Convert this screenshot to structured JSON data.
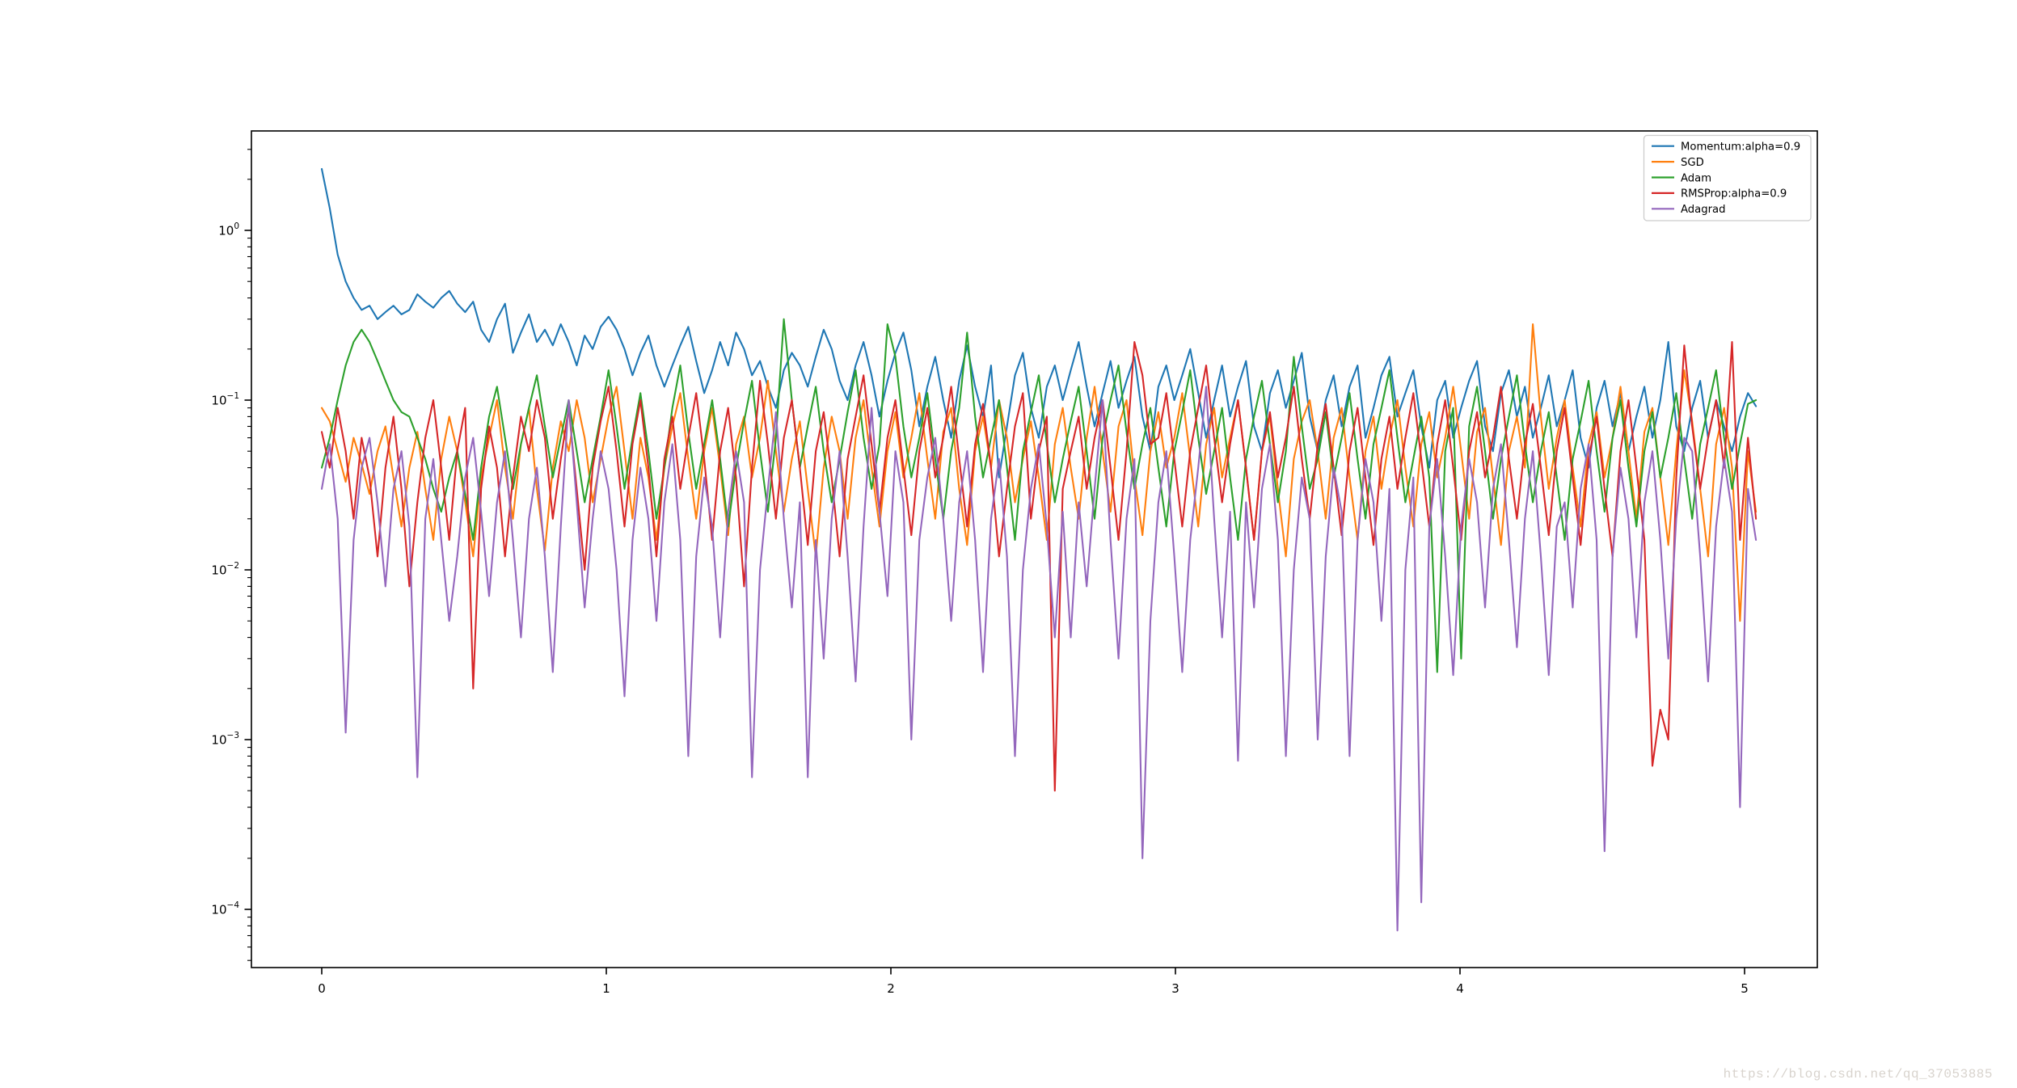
{
  "watermark": {
    "text": "https://blog.csdn.net/qq_37053885",
    "color": "#d8d3cd"
  },
  "chart_data": {
    "type": "line",
    "title": "",
    "xlabel": "",
    "ylabel": "",
    "grid": false,
    "background": "#ffffff",
    "axes_color": "#000000",
    "x_axis": {
      "ticks": [
        0,
        1,
        2,
        3,
        4,
        5
      ],
      "lim": [
        -0.25,
        5.29
      ]
    },
    "y_axis": {
      "scale": "log",
      "lim": [
        4.2e-05,
        3.9
      ],
      "ticks": [
        {
          "base": "10",
          "exp": "0",
          "value": 1
        },
        {
          "base": "10",
          "exp": "−1",
          "value": 0.1
        },
        {
          "base": "10",
          "exp": "−2",
          "value": 0.01
        },
        {
          "base": "10",
          "exp": "−3",
          "value": 0.001
        },
        {
          "base": "10",
          "exp": "−4",
          "value": 0.0001
        }
      ]
    },
    "legend": {
      "position": "upper right",
      "border_color": "#cccccc",
      "entries": [
        "Momentum:alpha=0.9",
        "SGD",
        "Adam",
        "RMSProp:alpha=0.9",
        "Adagrad"
      ]
    },
    "x0": 0,
    "dx": 0.028,
    "series": [
      {
        "name": "Momentum:alpha=0.9",
        "color": "#1f77b4",
        "values": [
          2.3,
          1.35,
          0.72,
          0.5,
          0.4,
          0.34,
          0.36,
          0.3,
          0.33,
          0.36,
          0.32,
          0.34,
          0.42,
          0.38,
          0.35,
          0.4,
          0.44,
          0.37,
          0.33,
          0.38,
          0.26,
          0.22,
          0.3,
          0.37,
          0.19,
          0.25,
          0.32,
          0.22,
          0.26,
          0.21,
          0.28,
          0.22,
          0.16,
          0.24,
          0.2,
          0.27,
          0.31,
          0.26,
          0.2,
          0.14,
          0.19,
          0.24,
          0.16,
          0.12,
          0.16,
          0.21,
          0.27,
          0.17,
          0.11,
          0.15,
          0.22,
          0.16,
          0.25,
          0.2,
          0.14,
          0.17,
          0.12,
          0.09,
          0.15,
          0.19,
          0.16,
          0.12,
          0.18,
          0.26,
          0.2,
          0.13,
          0.1,
          0.16,
          0.22,
          0.14,
          0.08,
          0.13,
          0.19,
          0.25,
          0.15,
          0.07,
          0.12,
          0.18,
          0.1,
          0.06,
          0.13,
          0.21,
          0.12,
          0.08,
          0.16,
          0.035,
          0.07,
          0.14,
          0.19,
          0.09,
          0.06,
          0.12,
          0.16,
          0.1,
          0.15,
          0.22,
          0.12,
          0.07,
          0.11,
          0.17,
          0.09,
          0.13,
          0.18,
          0.08,
          0.05,
          0.12,
          0.16,
          0.1,
          0.14,
          0.2,
          0.11,
          0.06,
          0.1,
          0.16,
          0.08,
          0.12,
          0.17,
          0.07,
          0.05,
          0.11,
          0.15,
          0.09,
          0.13,
          0.19,
          0.08,
          0.05,
          0.1,
          0.14,
          0.07,
          0.12,
          0.16,
          0.06,
          0.09,
          0.14,
          0.18,
          0.08,
          0.11,
          0.15,
          0.07,
          0.04,
          0.1,
          0.13,
          0.06,
          0.09,
          0.13,
          0.17,
          0.07,
          0.05,
          0.11,
          0.15,
          0.08,
          0.12,
          0.06,
          0.09,
          0.14,
          0.07,
          0.1,
          0.15,
          0.06,
          0.04,
          0.09,
          0.13,
          0.07,
          0.11,
          0.05,
          0.08,
          0.12,
          0.06,
          0.1,
          0.22,
          0.07,
          0.05,
          0.09,
          0.13,
          0.06,
          0.1,
          0.07,
          0.05,
          0.08,
          0.11,
          0.092
        ]
      },
      {
        "name": "SGD",
        "color": "#ff7f0e",
        "values": [
          0.09,
          0.075,
          0.05,
          0.033,
          0.06,
          0.042,
          0.028,
          0.05,
          0.07,
          0.035,
          0.018,
          0.04,
          0.065,
          0.03,
          0.015,
          0.045,
          0.08,
          0.05,
          0.025,
          0.012,
          0.035,
          0.06,
          0.1,
          0.04,
          0.02,
          0.055,
          0.09,
          0.03,
          0.013,
          0.04,
          0.075,
          0.05,
          0.1,
          0.06,
          0.025,
          0.045,
          0.08,
          0.12,
          0.05,
          0.02,
          0.06,
          0.035,
          0.015,
          0.04,
          0.07,
          0.11,
          0.045,
          0.02,
          0.05,
          0.09,
          0.04,
          0.016,
          0.055,
          0.08,
          0.035,
          0.06,
          0.13,
          0.05,
          0.022,
          0.045,
          0.075,
          0.03,
          0.012,
          0.04,
          0.08,
          0.05,
          0.02,
          0.06,
          0.1,
          0.04,
          0.018,
          0.05,
          0.085,
          0.035,
          0.06,
          0.11,
          0.045,
          0.02,
          0.065,
          0.09,
          0.03,
          0.014,
          0.05,
          0.08,
          0.04,
          0.1,
          0.06,
          0.025,
          0.045,
          0.075,
          0.035,
          0.015,
          0.055,
          0.09,
          0.04,
          0.02,
          0.06,
          0.12,
          0.05,
          0.022,
          0.07,
          0.1,
          0.035,
          0.016,
          0.05,
          0.085,
          0.04,
          0.06,
          0.11,
          0.045,
          0.018,
          0.055,
          0.09,
          0.035,
          0.06,
          0.1,
          0.04,
          0.015,
          0.05,
          0.08,
          0.03,
          0.012,
          0.045,
          0.075,
          0.1,
          0.05,
          0.02,
          0.06,
          0.09,
          0.035,
          0.015,
          0.05,
          0.08,
          0.03,
          0.06,
          0.1,
          0.04,
          0.018,
          0.055,
          0.085,
          0.035,
          0.06,
          0.12,
          0.05,
          0.02,
          0.065,
          0.09,
          0.035,
          0.014,
          0.05,
          0.08,
          0.04,
          0.28,
          0.08,
          0.03,
          0.06,
          0.1,
          0.04,
          0.018,
          0.055,
          0.085,
          0.035,
          0.06,
          0.12,
          0.05,
          0.02,
          0.065,
          0.09,
          0.035,
          0.014,
          0.05,
          0.15,
          0.075,
          0.03,
          0.012,
          0.055,
          0.09,
          0.04,
          0.005,
          0.05,
          0.022
        ]
      },
      {
        "name": "Adam",
        "color": "#2ca02c",
        "values": [
          0.04,
          0.06,
          0.1,
          0.16,
          0.22,
          0.26,
          0.22,
          0.17,
          0.13,
          0.1,
          0.085,
          0.08,
          0.06,
          0.045,
          0.03,
          0.022,
          0.035,
          0.05,
          0.028,
          0.015,
          0.04,
          0.08,
          0.12,
          0.06,
          0.03,
          0.055,
          0.09,
          0.14,
          0.07,
          0.035,
          0.06,
          0.1,
          0.05,
          0.025,
          0.045,
          0.08,
          0.15,
          0.07,
          0.03,
          0.06,
          0.11,
          0.05,
          0.02,
          0.04,
          0.09,
          0.16,
          0.065,
          0.03,
          0.055,
          0.1,
          0.045,
          0.018,
          0.04,
          0.075,
          0.13,
          0.05,
          0.022,
          0.06,
          0.3,
          0.1,
          0.04,
          0.07,
          0.12,
          0.05,
          0.025,
          0.045,
          0.085,
          0.15,
          0.06,
          0.03,
          0.055,
          0.28,
          0.18,
          0.07,
          0.035,
          0.06,
          0.11,
          0.045,
          0.02,
          0.05,
          0.09,
          0.25,
          0.08,
          0.035,
          0.06,
          0.1,
          0.04,
          0.015,
          0.05,
          0.085,
          0.14,
          0.055,
          0.025,
          0.045,
          0.075,
          0.12,
          0.05,
          0.02,
          0.06,
          0.1,
          0.16,
          0.065,
          0.03,
          0.055,
          0.09,
          0.04,
          0.018,
          0.05,
          0.085,
          0.15,
          0.06,
          0.028,
          0.05,
          0.09,
          0.035,
          0.015,
          0.045,
          0.08,
          0.13,
          0.055,
          0.025,
          0.05,
          0.18,
          0.07,
          0.03,
          0.045,
          0.085,
          0.035,
          0.06,
          0.11,
          0.045,
          0.02,
          0.055,
          0.09,
          0.15,
          0.06,
          0.025,
          0.045,
          0.08,
          0.035,
          0.0025,
          0.05,
          0.09,
          0.003,
          0.07,
          0.12,
          0.05,
          0.02,
          0.045,
          0.08,
          0.14,
          0.055,
          0.025,
          0.05,
          0.085,
          0.035,
          0.015,
          0.045,
          0.075,
          0.13,
          0.05,
          0.022,
          0.06,
          0.1,
          0.04,
          0.018,
          0.05,
          0.085,
          0.035,
          0.06,
          0.11,
          0.045,
          0.02,
          0.055,
          0.09,
          0.15,
          0.06,
          0.03,
          0.055,
          0.095,
          0.1
        ]
      },
      {
        "name": "RMSProp:alpha=0.9",
        "color": "#d62728",
        "values": [
          0.065,
          0.04,
          0.09,
          0.05,
          0.02,
          0.06,
          0.035,
          0.012,
          0.04,
          0.08,
          0.03,
          0.008,
          0.025,
          0.06,
          0.1,
          0.04,
          0.015,
          0.05,
          0.09,
          0.002,
          0.03,
          0.07,
          0.04,
          0.012,
          0.035,
          0.08,
          0.05,
          0.1,
          0.06,
          0.02,
          0.045,
          0.09,
          0.03,
          0.01,
          0.04,
          0.075,
          0.12,
          0.05,
          0.018,
          0.055,
          0.1,
          0.04,
          0.012,
          0.045,
          0.08,
          0.03,
          0.06,
          0.11,
          0.045,
          0.015,
          0.05,
          0.09,
          0.035,
          0.008,
          0.04,
          0.13,
          0.055,
          0.02,
          0.06,
          0.1,
          0.04,
          0.014,
          0.05,
          0.085,
          0.035,
          0.012,
          0.045,
          0.08,
          0.14,
          0.055,
          0.022,
          0.06,
          0.1,
          0.04,
          0.016,
          0.05,
          0.09,
          0.035,
          0.06,
          0.12,
          0.045,
          0.018,
          0.055,
          0.095,
          0.04,
          0.012,
          0.03,
          0.07,
          0.11,
          0.02,
          0.05,
          0.08,
          0.0005,
          0.03,
          0.05,
          0.08,
          0.03,
          0.06,
          0.1,
          0.04,
          0.015,
          0.05,
          0.22,
          0.14,
          0.055,
          0.06,
          0.11,
          0.045,
          0.018,
          0.05,
          0.09,
          0.16,
          0.06,
          0.025,
          0.055,
          0.1,
          0.04,
          0.015,
          0.05,
          0.085,
          0.035,
          0.06,
          0.12,
          0.045,
          0.02,
          0.055,
          0.095,
          0.04,
          0.016,
          0.05,
          0.09,
          0.035,
          0.014,
          0.045,
          0.08,
          0.03,
          0.06,
          0.11,
          0.045,
          0.018,
          0.055,
          0.1,
          0.04,
          0.015,
          0.05,
          0.085,
          0.035,
          0.06,
          0.12,
          0.045,
          0.02,
          0.055,
          0.095,
          0.04,
          0.016,
          0.05,
          0.09,
          0.035,
          0.014,
          0.045,
          0.08,
          0.03,
          0.012,
          0.05,
          0.1,
          0.04,
          0.015,
          0.0007,
          0.0015,
          0.001,
          0.035,
          0.21,
          0.07,
          0.03,
          0.06,
          0.1,
          0.04,
          0.22,
          0.015,
          0.06,
          0.02
        ]
      },
      {
        "name": "Adagrad",
        "color": "#9467bd",
        "values": [
          0.03,
          0.055,
          0.02,
          0.0011,
          0.015,
          0.04,
          0.06,
          0.025,
          0.008,
          0.03,
          0.05,
          0.018,
          0.0006,
          0.02,
          0.045,
          0.015,
          0.005,
          0.012,
          0.035,
          0.06,
          0.022,
          0.007,
          0.025,
          0.05,
          0.015,
          0.004,
          0.02,
          0.04,
          0.012,
          0.0025,
          0.018,
          0.1,
          0.025,
          0.006,
          0.02,
          0.05,
          0.03,
          0.01,
          0.0018,
          0.015,
          0.04,
          0.02,
          0.005,
          0.025,
          0.055,
          0.015,
          0.0008,
          0.012,
          0.035,
          0.018,
          0.004,
          0.022,
          0.05,
          0.025,
          0.0006,
          0.01,
          0.03,
          0.085,
          0.02,
          0.006,
          0.025,
          0.0006,
          0.015,
          0.003,
          0.02,
          0.05,
          0.012,
          0.0022,
          0.018,
          0.09,
          0.022,
          0.007,
          0.05,
          0.025,
          0.001,
          0.015,
          0.035,
          0.06,
          0.02,
          0.005,
          0.025,
          0.05,
          0.015,
          0.0025,
          0.02,
          0.045,
          0.012,
          0.0008,
          0.01,
          0.03,
          0.055,
          0.018,
          0.004,
          0.022,
          0.004,
          0.025,
          0.008,
          0.03,
          0.1,
          0.015,
          0.003,
          0.02,
          0.045,
          0.0002,
          0.005,
          0.025,
          0.05,
          0.012,
          0.0025,
          0.015,
          0.04,
          0.12,
          0.02,
          0.004,
          0.022,
          0.00075,
          0.025,
          0.006,
          0.03,
          0.055,
          0.015,
          0.0008,
          0.01,
          0.035,
          0.02,
          0.001,
          0.012,
          0.04,
          0.022,
          0.0008,
          0.015,
          0.045,
          0.025,
          0.005,
          0.03,
          7.5e-05,
          0.01,
          0.035,
          0.00011,
          0.018,
          0.045,
          0.012,
          0.0024,
          0.018,
          0.045,
          0.025,
          0.006,
          0.03,
          0.055,
          0.015,
          0.0035,
          0.02,
          0.05,
          0.012,
          0.0024,
          0.018,
          0.025,
          0.006,
          0.03,
          0.055,
          0.015,
          0.00022,
          0.012,
          0.04,
          0.02,
          0.004,
          0.025,
          0.05,
          0.015,
          0.003,
          0.02,
          0.06,
          0.05,
          0.012,
          0.0022,
          0.018,
          0.045,
          0.022,
          0.0004,
          0.03,
          0.015
        ]
      }
    ]
  }
}
